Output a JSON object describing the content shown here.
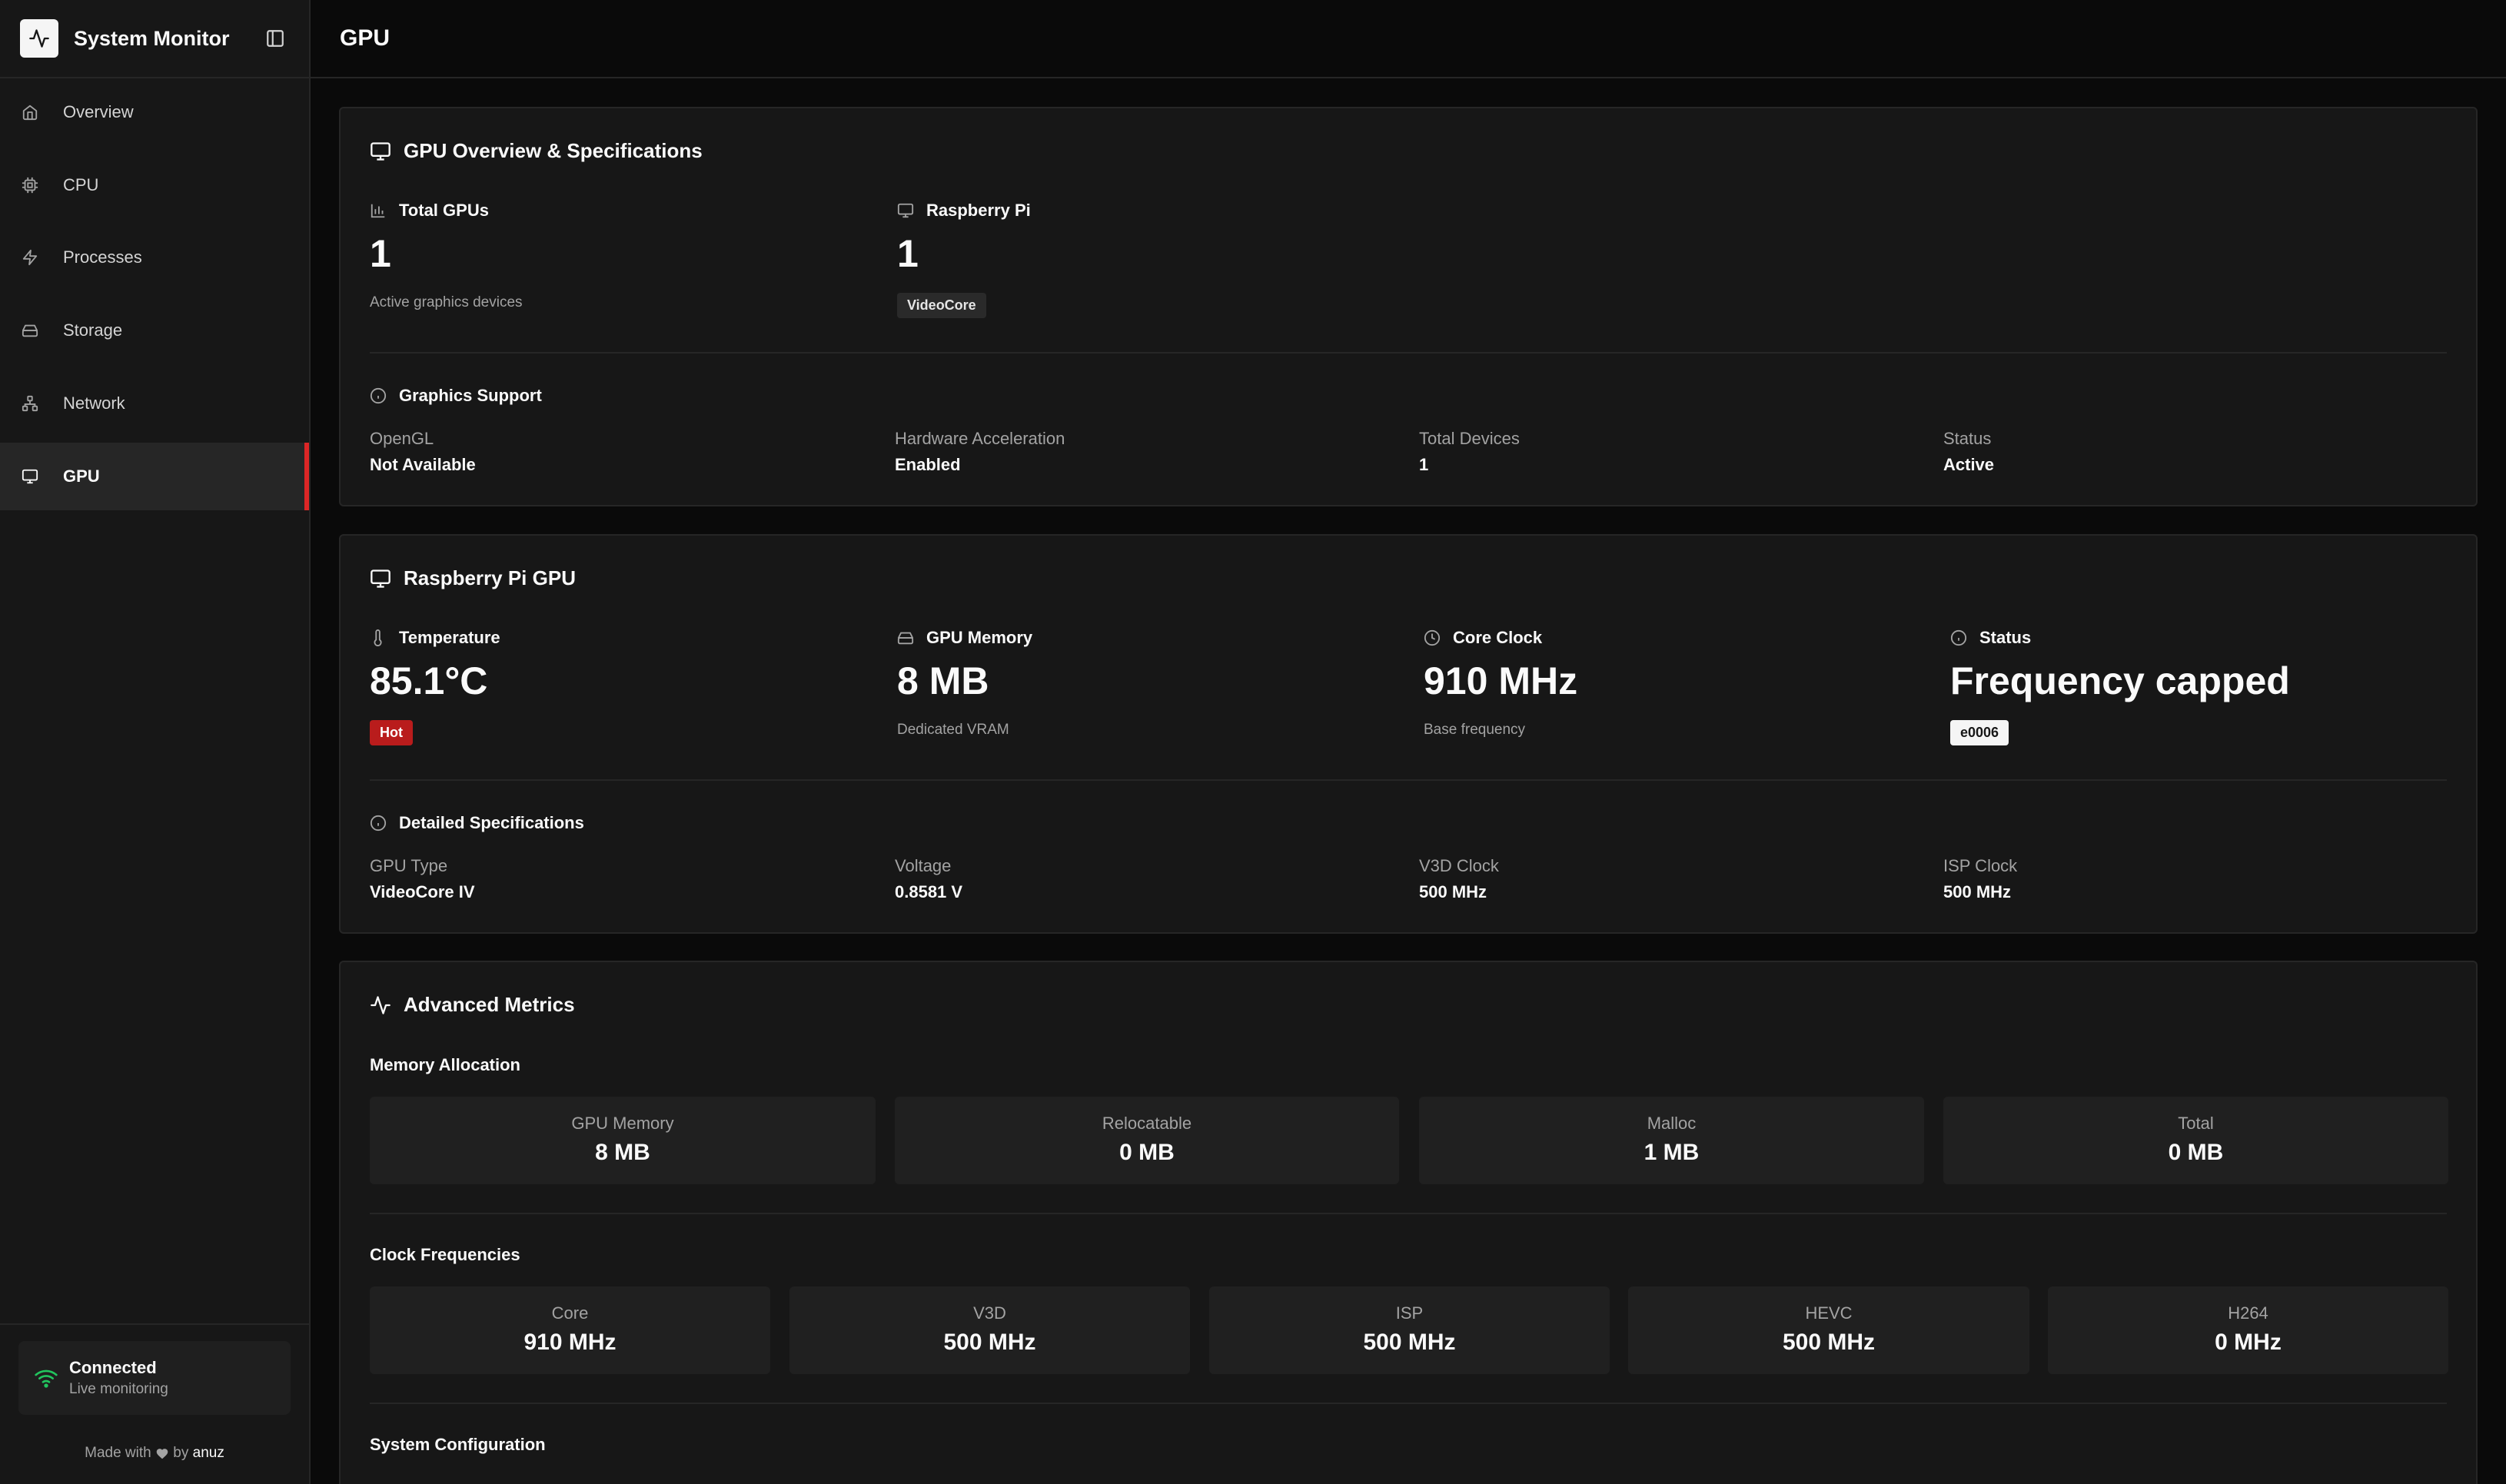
{
  "sidebar": {
    "app_title": "System Monitor",
    "items": [
      {
        "label": "Overview",
        "icon": "home-icon"
      },
      {
        "label": "CPU",
        "icon": "cpu-icon"
      },
      {
        "label": "Processes",
        "icon": "zap-icon"
      },
      {
        "label": "Storage",
        "icon": "hard-drive-icon"
      },
      {
        "label": "Network",
        "icon": "network-icon"
      },
      {
        "label": "GPU",
        "icon": "monitor-icon",
        "active": true
      }
    ],
    "connection": {
      "title": "Connected",
      "subtitle": "Live monitoring"
    },
    "footer": {
      "made_with": "Made with",
      "by": "by",
      "author": "anuz"
    }
  },
  "header": {
    "title": "GPU"
  },
  "overview": {
    "title": "GPU Overview & Specifications",
    "total_gpus": {
      "label": "Total GPUs",
      "value": "1",
      "sub": "Active graphics devices"
    },
    "raspberry_pi": {
      "label": "Raspberry Pi",
      "value": "1",
      "badge": "VideoCore"
    },
    "graphics_support": {
      "label": "Graphics Support",
      "items": [
        {
          "k": "OpenGL",
          "v": "Not Available"
        },
        {
          "k": "Hardware Acceleration",
          "v": "Enabled"
        },
        {
          "k": "Total Devices",
          "v": "1"
        },
        {
          "k": "Status",
          "v": "Active"
        }
      ]
    }
  },
  "gpu_card": {
    "title": "Raspberry Pi GPU",
    "temperature": {
      "label": "Temperature",
      "value": "85.1°C",
      "badge": "Hot"
    },
    "memory": {
      "label": "GPU Memory",
      "value": "8 MB",
      "sub": "Dedicated VRAM"
    },
    "core_clock": {
      "label": "Core Clock",
      "value": "910 MHz",
      "sub": "Base frequency"
    },
    "status": {
      "label": "Status",
      "value": "Frequency capped",
      "badge": "e0006"
    },
    "details": {
      "label": "Detailed Specifications",
      "items": [
        {
          "k": "GPU Type",
          "v": "VideoCore IV"
        },
        {
          "k": "Voltage",
          "v": "0.8581 V"
        },
        {
          "k": "V3D Clock",
          "v": "500 MHz"
        },
        {
          "k": "ISP Clock",
          "v": "500 MHz"
        }
      ]
    }
  },
  "advanced": {
    "title": "Advanced Metrics",
    "memory_allocation": {
      "label": "Memory Allocation",
      "tiles": [
        {
          "k": "GPU Memory",
          "v": "8 MB"
        },
        {
          "k": "Relocatable",
          "v": "0 MB"
        },
        {
          "k": "Malloc",
          "v": "1 MB"
        },
        {
          "k": "Total",
          "v": "0 MB"
        }
      ]
    },
    "clock_frequencies": {
      "label": "Clock Frequencies",
      "tiles": [
        {
          "k": "Core",
          "v": "910 MHz"
        },
        {
          "k": "V3D",
          "v": "500 MHz"
        },
        {
          "k": "ISP",
          "v": "500 MHz"
        },
        {
          "k": "HEVC",
          "v": "500 MHz"
        },
        {
          "k": "H264",
          "v": "0 MHz"
        }
      ]
    },
    "system_configuration": {
      "label": "System Configuration"
    }
  },
  "colors": {
    "accent": "#dc2626",
    "hot_badge": "#b91c1c",
    "connected": "#22c55e"
  }
}
